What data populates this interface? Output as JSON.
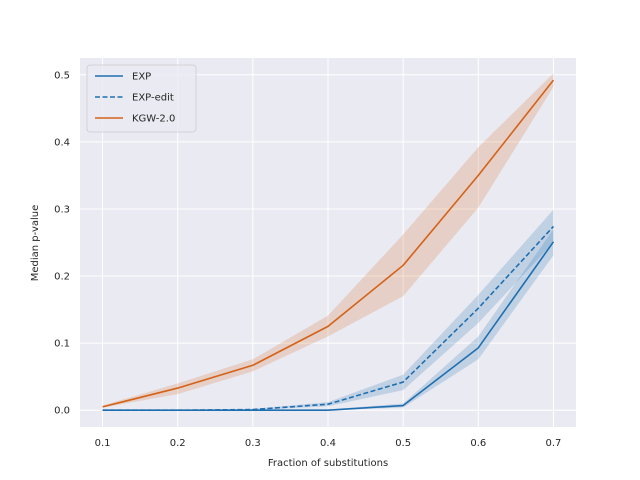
{
  "chart_data": {
    "type": "line",
    "xlabel": "Fraction of substitutions",
    "ylabel": "Median p-value",
    "xlim": [
      0.07,
      0.73
    ],
    "ylim": [
      -0.025,
      0.525
    ],
    "x_ticks": [
      0.1,
      0.2,
      0.3,
      0.4,
      0.5,
      0.6,
      0.7
    ],
    "x_tick_labels": [
      "0.1",
      "0.2",
      "0.3",
      "0.4",
      "0.5",
      "0.6",
      "0.7"
    ],
    "y_ticks": [
      0.0,
      0.1,
      0.2,
      0.3,
      0.4,
      0.5
    ],
    "y_tick_labels": [
      "0.0",
      "0.1",
      "0.2",
      "0.3",
      "0.4",
      "0.5"
    ],
    "grid": true,
    "legend_position": "top-left",
    "x": [
      0.1,
      0.2,
      0.3,
      0.4,
      0.5,
      0.6,
      0.7
    ],
    "series": [
      {
        "name": "EXP",
        "color": "#1f6fb0",
        "style": "solid",
        "values": [
          0.0,
          0.0,
          0.0,
          0.0,
          0.007,
          0.093,
          0.251
        ],
        "lower": [
          0.0,
          0.0,
          0.0,
          0.0,
          0.004,
          0.076,
          0.231
        ],
        "upper": [
          0.0,
          0.0,
          0.0,
          0.001,
          0.01,
          0.11,
          0.27
        ]
      },
      {
        "name": "EXP-edit",
        "color": "#1f6fb0",
        "style": "dashed",
        "values": [
          0.0,
          0.0,
          0.001,
          0.009,
          0.042,
          0.152,
          0.274
        ],
        "lower": [
          0.0,
          0.0,
          0.0,
          0.006,
          0.03,
          0.13,
          0.25
        ],
        "upper": [
          0.0,
          0.0,
          0.002,
          0.012,
          0.053,
          0.172,
          0.299
        ]
      },
      {
        "name": "KGW-2.0",
        "color": "#d46219",
        "style": "solid",
        "values": [
          0.005,
          0.033,
          0.067,
          0.125,
          0.216,
          0.35,
          0.492
        ],
        "lower": [
          0.004,
          0.024,
          0.058,
          0.11,
          0.17,
          0.302,
          0.482
        ],
        "upper": [
          0.007,
          0.04,
          0.076,
          0.141,
          0.262,
          0.392,
          0.502
        ]
      }
    ]
  }
}
